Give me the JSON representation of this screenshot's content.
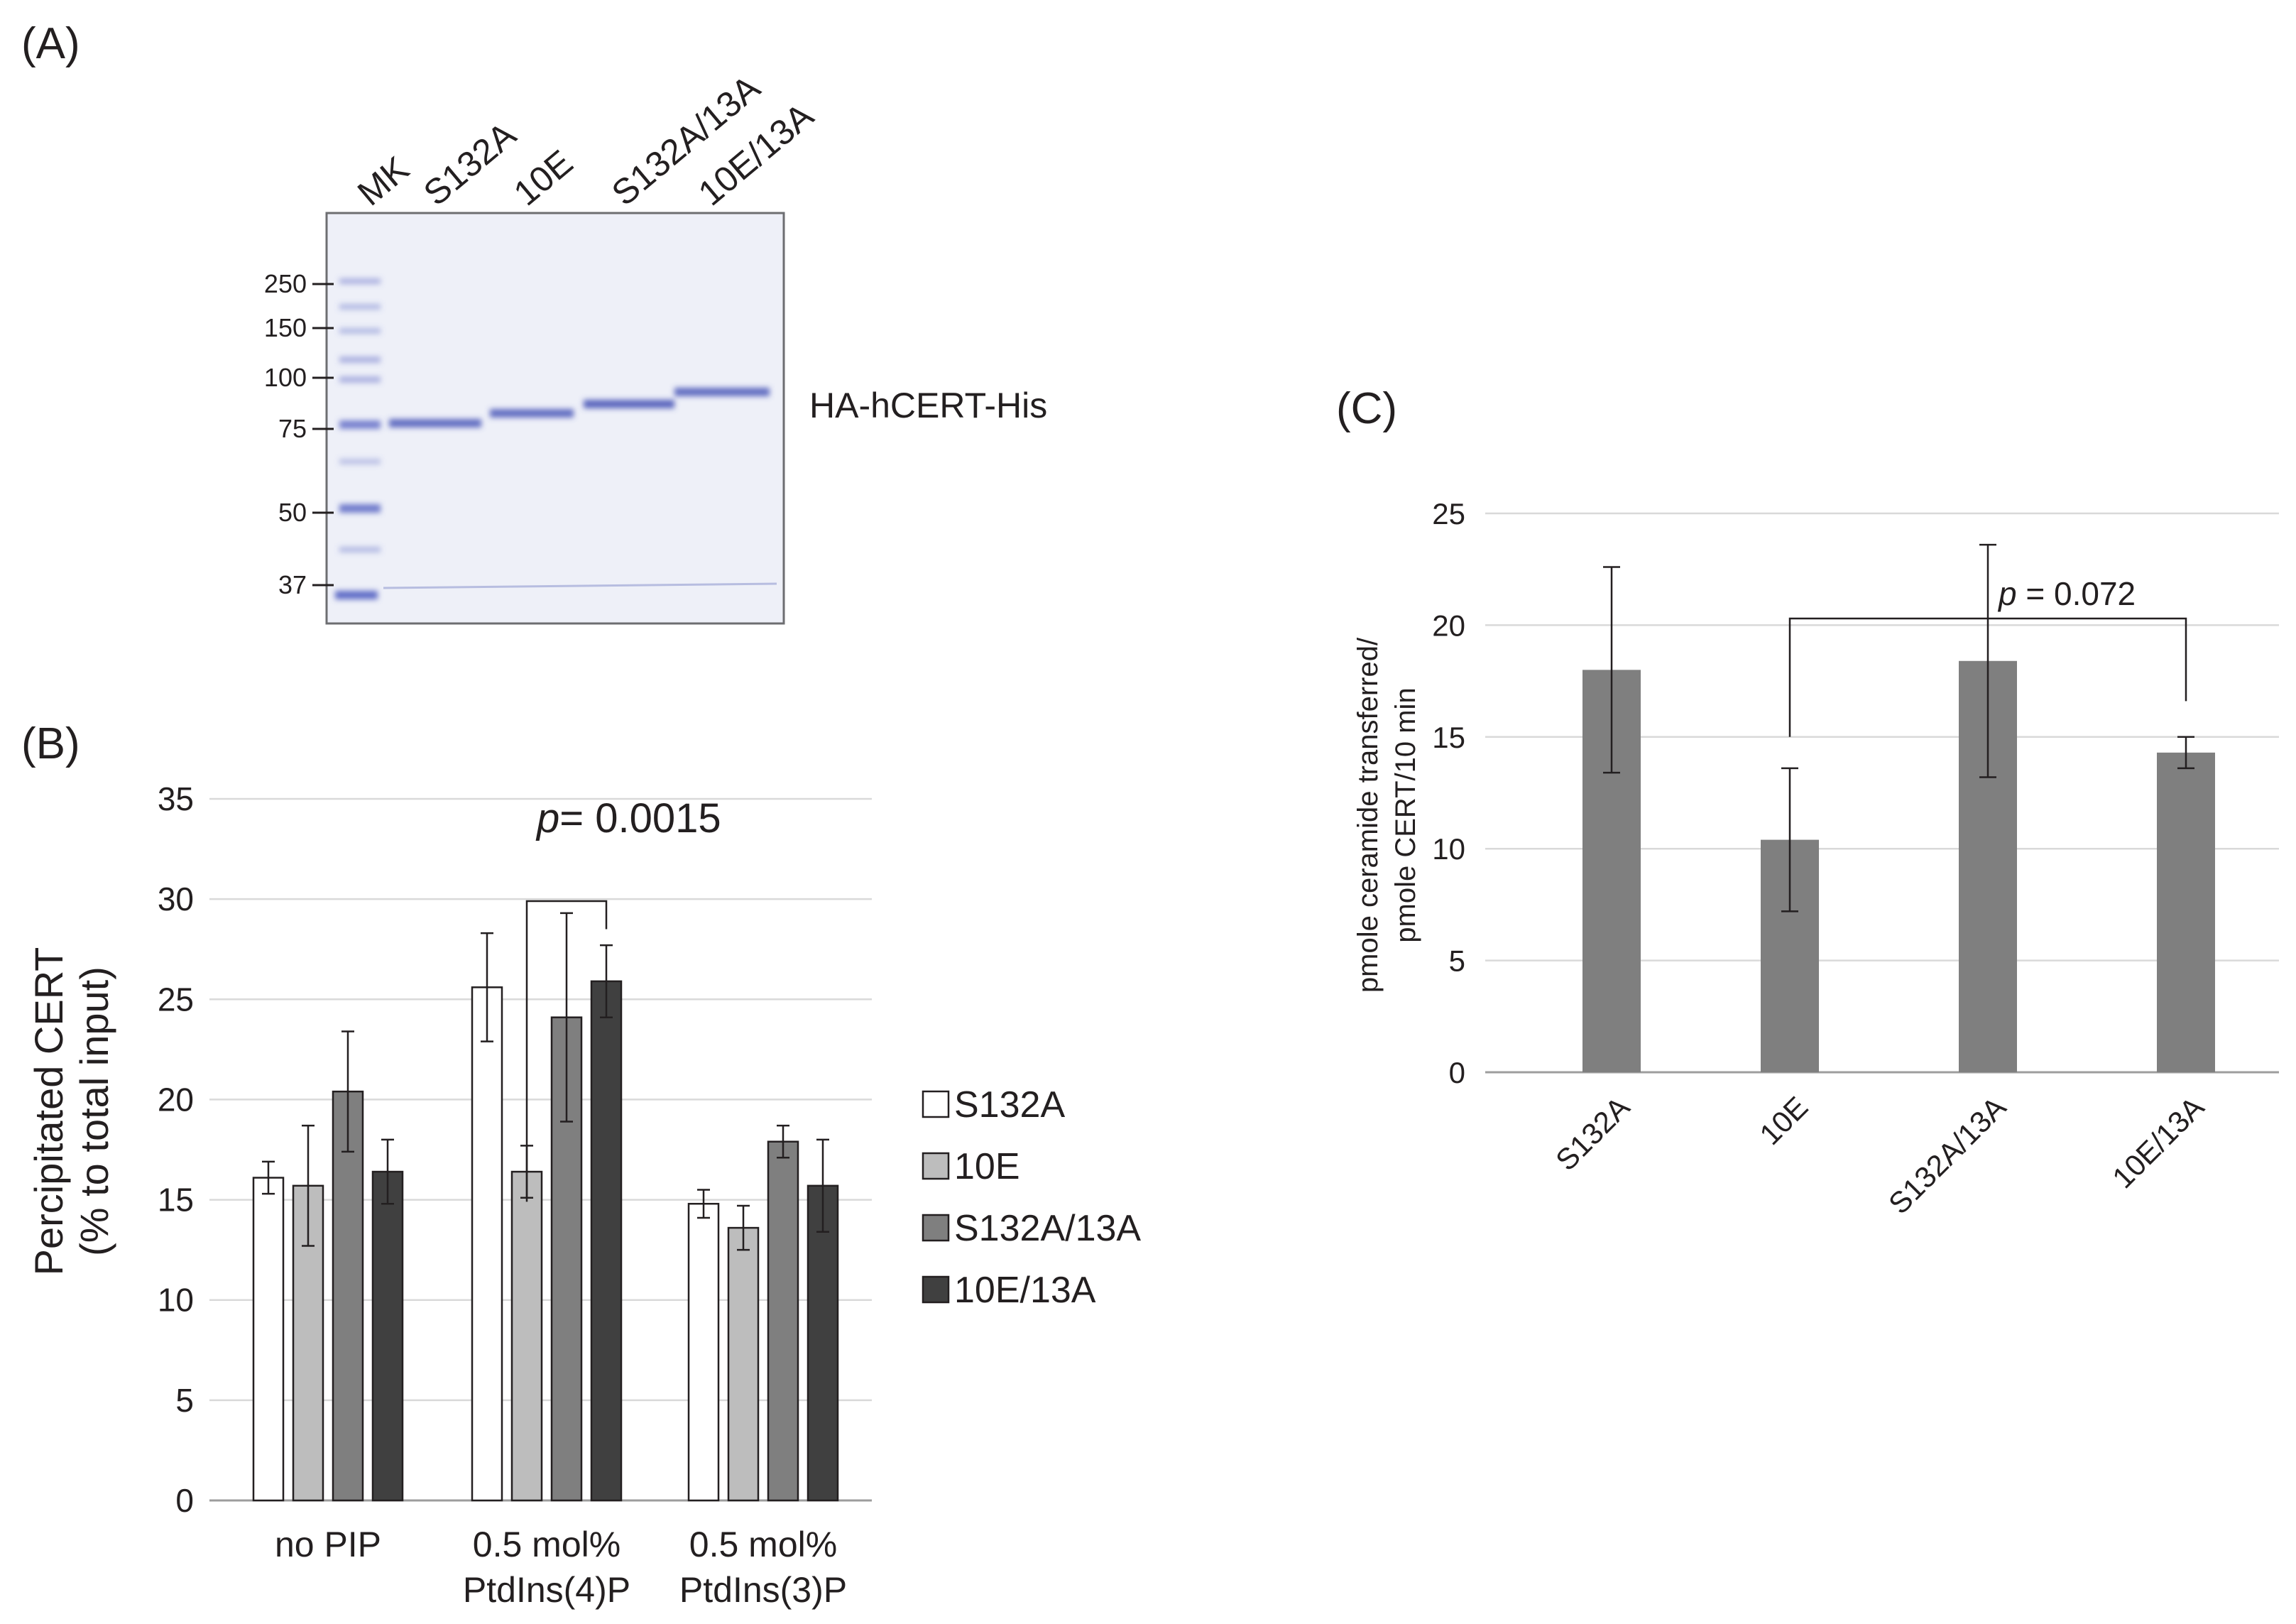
{
  "panel_a": {
    "label": "(A)",
    "lane_labels": [
      "MK",
      "S132A",
      "10E",
      "S132A/13A",
      "10E/13A"
    ],
    "marker_sizes": [
      "250",
      "150",
      "100",
      "75",
      "50",
      "37"
    ],
    "band_label": "HA-hCERT-His",
    "colors": {
      "gel_bg": "#eef0f8",
      "band": "#4a57b8",
      "marker": "#5a66c4"
    }
  },
  "chart_data": [
    {
      "panel_label": "(B)",
      "type": "bar",
      "ylabel_line1": "Percipitated CERT",
      "ylabel_line2": "(% to total input)",
      "ylim": [
        0,
        35
      ],
      "yticks": [
        0,
        5,
        10,
        15,
        20,
        25,
        30,
        35
      ],
      "grid": true,
      "legend_position": "right",
      "categories": [
        {
          "line1": "no PIP",
          "line2": ""
        },
        {
          "line1": "0.5 mol%",
          "line2": "PtdIns(4)P"
        },
        {
          "line1": "0.5 mol%",
          "line2": "PtdIns(3)P"
        }
      ],
      "series": [
        {
          "name": "S132A",
          "color": "#ffffff",
          "values": [
            16.1,
            25.6,
            14.8
          ],
          "errors": [
            0.8,
            2.7,
            0.7
          ]
        },
        {
          "name": "10E",
          "color": "#bdbdbd",
          "values": [
            15.7,
            16.4,
            13.6
          ],
          "errors": [
            3.0,
            1.3,
            1.1
          ]
        },
        {
          "name": "S132A/13A",
          "color": "#7f7f7f",
          "values": [
            20.4,
            24.1,
            17.9
          ],
          "errors": [
            3.0,
            5.2,
            0.8
          ]
        },
        {
          "name": "10E/13A",
          "color": "#404040",
          "values": [
            16.4,
            25.9,
            15.7
          ],
          "errors": [
            1.6,
            1.8,
            2.3
          ]
        }
      ],
      "annotation": {
        "p_symbol": "p",
        "p_text": "= 0.0015",
        "from_category": 1,
        "from_series": 1,
        "to_series": 3
      }
    },
    {
      "panel_label": "(C)",
      "type": "bar",
      "ylabel_line1": "pmole ceramide transferred/",
      "ylabel_line2": "pmole CERT/10 min",
      "ylim": [
        0,
        25
      ],
      "yticks": [
        0,
        5,
        10,
        15,
        20,
        25
      ],
      "grid": true,
      "categories": [
        "S132A",
        "10E",
        "S132A/13A",
        "10E/13A"
      ],
      "values": [
        18.0,
        10.4,
        18.4,
        14.3
      ],
      "errors": [
        4.6,
        3.2,
        5.2,
        0.7
      ],
      "bar_color": "#7f7f7f",
      "annotation": {
        "p_symbol": "p",
        "p_text": " = 0.072",
        "from_index": 1,
        "to_index": 3
      }
    }
  ]
}
